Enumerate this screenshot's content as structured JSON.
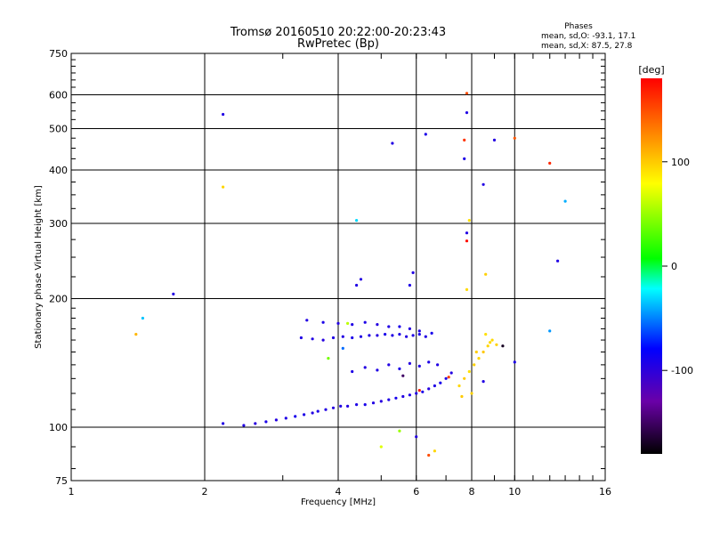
{
  "chart_data": {
    "type": "scatter",
    "title": "Tromsø 20160510 20:22:00-20:23:43",
    "subtitle": "RwPretec (Bp)",
    "xlabel": "Frequency [MHz]",
    "ylabel": "Stationary phase Virtual Height [km]",
    "x_scale": "log",
    "y_scale": "log",
    "xlim": [
      1,
      16
    ],
    "ylim": [
      75,
      750
    ],
    "x_ticks": [
      1,
      2,
      4,
      6,
      8,
      10,
      16
    ],
    "x_tick_labels": [
      "1",
      "2",
      "4",
      "6",
      "8",
      "10",
      "16"
    ],
    "y_ticks": [
      75,
      100,
      200,
      300,
      400,
      500,
      600,
      750
    ],
    "y_tick_labels": [
      "75",
      "100",
      "200",
      "300",
      "400",
      "500",
      "600",
      "750"
    ],
    "grid": true,
    "info_box": {
      "heading": "Phases",
      "line1": "mean, sd,O: -93.1, 17.1",
      "line2": "mean, sd,X:  87.5, 27.8"
    },
    "colorbar": {
      "label": "[deg]",
      "range": [
        -180,
        180
      ],
      "ticks": [
        100,
        0,
        -100
      ],
      "tick_labels": [
        "100",
        "0",
        "-100"
      ]
    },
    "series": [
      {
        "points": [
          [
            2.2,
            102,
            -95
          ],
          [
            2.45,
            101,
            -95
          ],
          [
            2.6,
            102,
            -98
          ],
          [
            2.75,
            103,
            -92
          ],
          [
            2.9,
            104,
            -96
          ],
          [
            3.05,
            105,
            -94
          ],
          [
            3.2,
            106,
            -90
          ],
          [
            3.35,
            107,
            -93
          ],
          [
            3.5,
            108,
            -96
          ],
          [
            3.6,
            109,
            -92
          ],
          [
            3.75,
            110,
            -95
          ],
          [
            3.9,
            111,
            -97
          ],
          [
            4.05,
            112,
            -94
          ],
          [
            4.2,
            112,
            -96
          ],
          [
            4.4,
            113,
            -93
          ],
          [
            4.6,
            113,
            -91
          ],
          [
            4.8,
            114,
            -95
          ],
          [
            5.0,
            115,
            -98
          ],
          [
            5.2,
            116,
            -94
          ],
          [
            5.4,
            117,
            -90
          ],
          [
            5.6,
            118,
            -96
          ],
          [
            5.8,
            119,
            -93
          ],
          [
            6.0,
            120,
            -95
          ],
          [
            6.2,
            121,
            -92
          ],
          [
            6.4,
            123,
            -97
          ],
          [
            6.6,
            125,
            -94
          ],
          [
            6.8,
            127,
            -90
          ],
          [
            7.0,
            130,
            -93
          ],
          [
            7.2,
            134,
            -96
          ],
          [
            3.3,
            162,
            -94
          ],
          [
            3.5,
            161,
            -95
          ],
          [
            3.7,
            160,
            -97
          ],
          [
            3.9,
            162,
            -93
          ],
          [
            4.1,
            163,
            -96
          ],
          [
            4.3,
            162,
            -92
          ],
          [
            4.5,
            163,
            -95
          ],
          [
            4.7,
            164,
            -94
          ],
          [
            4.9,
            164,
            -97
          ],
          [
            5.1,
            165,
            -91
          ],
          [
            5.3,
            164,
            -95
          ],
          [
            5.5,
            165,
            -93
          ],
          [
            5.7,
            163,
            -96
          ],
          [
            5.9,
            164,
            -94
          ],
          [
            6.1,
            165,
            -92
          ],
          [
            6.3,
            163,
            -95
          ],
          [
            6.5,
            166,
            -90
          ],
          [
            3.4,
            178,
            -95
          ],
          [
            3.7,
            176,
            -92
          ],
          [
            4.0,
            175,
            -96
          ],
          [
            4.3,
            174,
            -94
          ],
          [
            4.6,
            176,
            -93
          ],
          [
            4.9,
            174,
            -97
          ],
          [
            5.2,
            172,
            -95
          ],
          [
            5.5,
            172,
            -92
          ],
          [
            5.8,
            170,
            -96
          ],
          [
            6.1,
            168,
            -94
          ],
          [
            4.3,
            135,
            -93
          ],
          [
            4.6,
            138,
            -96
          ],
          [
            4.9,
            136,
            -94
          ],
          [
            5.2,
            140,
            -95
          ],
          [
            5.5,
            137,
            -92
          ],
          [
            5.8,
            141,
            -96
          ],
          [
            6.1,
            139,
            -94
          ],
          [
            6.4,
            142,
            -93
          ],
          [
            6.7,
            140,
            -95
          ],
          [
            4.4,
            215,
            -94
          ],
          [
            4.5,
            222,
            -96
          ],
          [
            5.9,
            230,
            -95
          ],
          [
            5.8,
            215,
            -93
          ],
          [
            5.3,
            462,
            -95
          ],
          [
            6.3,
            485,
            -92
          ],
          [
            8.5,
            370,
            -95
          ],
          [
            9.0,
            470,
            -96
          ],
          [
            2.2,
            540,
            -94
          ],
          [
            1.7,
            205,
            -95
          ],
          [
            12.5,
            245,
            -94
          ],
          [
            10.0,
            142,
            -92
          ],
          [
            8.5,
            128,
            -95
          ],
          [
            6.0,
            95,
            -96
          ],
          [
            7.8,
            285,
            -95
          ],
          [
            7.8,
            545,
            -94
          ],
          [
            7.7,
            425,
            -93
          ],
          [
            7.5,
            125,
            95
          ],
          [
            7.7,
            130,
            100
          ],
          [
            7.9,
            135,
            92
          ],
          [
            8.1,
            140,
            98
          ],
          [
            8.3,
            145,
            95
          ],
          [
            8.5,
            150,
            101
          ],
          [
            8.7,
            155,
            96
          ],
          [
            8.9,
            160,
            94
          ],
          [
            8.0,
            120,
            97
          ],
          [
            8.2,
            150,
            99
          ],
          [
            8.6,
            165,
            92
          ],
          [
            7.6,
            118,
            100
          ],
          [
            2.2,
            365,
            96
          ],
          [
            6.6,
            88,
            95
          ],
          [
            7.9,
            305,
            92
          ],
          [
            8.6,
            228,
            98
          ],
          [
            8.8,
            158,
            95
          ],
          [
            9.1,
            156,
            97
          ],
          [
            7.8,
            210,
            94
          ],
          [
            1.4,
            165,
            108
          ],
          [
            5.0,
            90,
            70
          ],
          [
            4.2,
            175,
            60
          ],
          [
            3.8,
            145,
            40
          ],
          [
            5.5,
            98,
            50
          ],
          [
            1.45,
            180,
            -35
          ],
          [
            4.4,
            305,
            -30
          ],
          [
            13.0,
            338,
            -40
          ],
          [
            12.0,
            168,
            -45
          ],
          [
            4.1,
            153,
            -55
          ],
          [
            6.4,
            86,
            150
          ],
          [
            7.8,
            605,
            150
          ],
          [
            7.7,
            470,
            160
          ],
          [
            10.0,
            475,
            145
          ],
          [
            12.0,
            415,
            165
          ],
          [
            6.1,
            122,
            170
          ],
          [
            7.1,
            131,
            155
          ],
          [
            7.8,
            273,
            175
          ],
          [
            9.4,
            155,
            -170
          ],
          [
            5.6,
            132,
            -150
          ]
        ]
      }
    ]
  }
}
